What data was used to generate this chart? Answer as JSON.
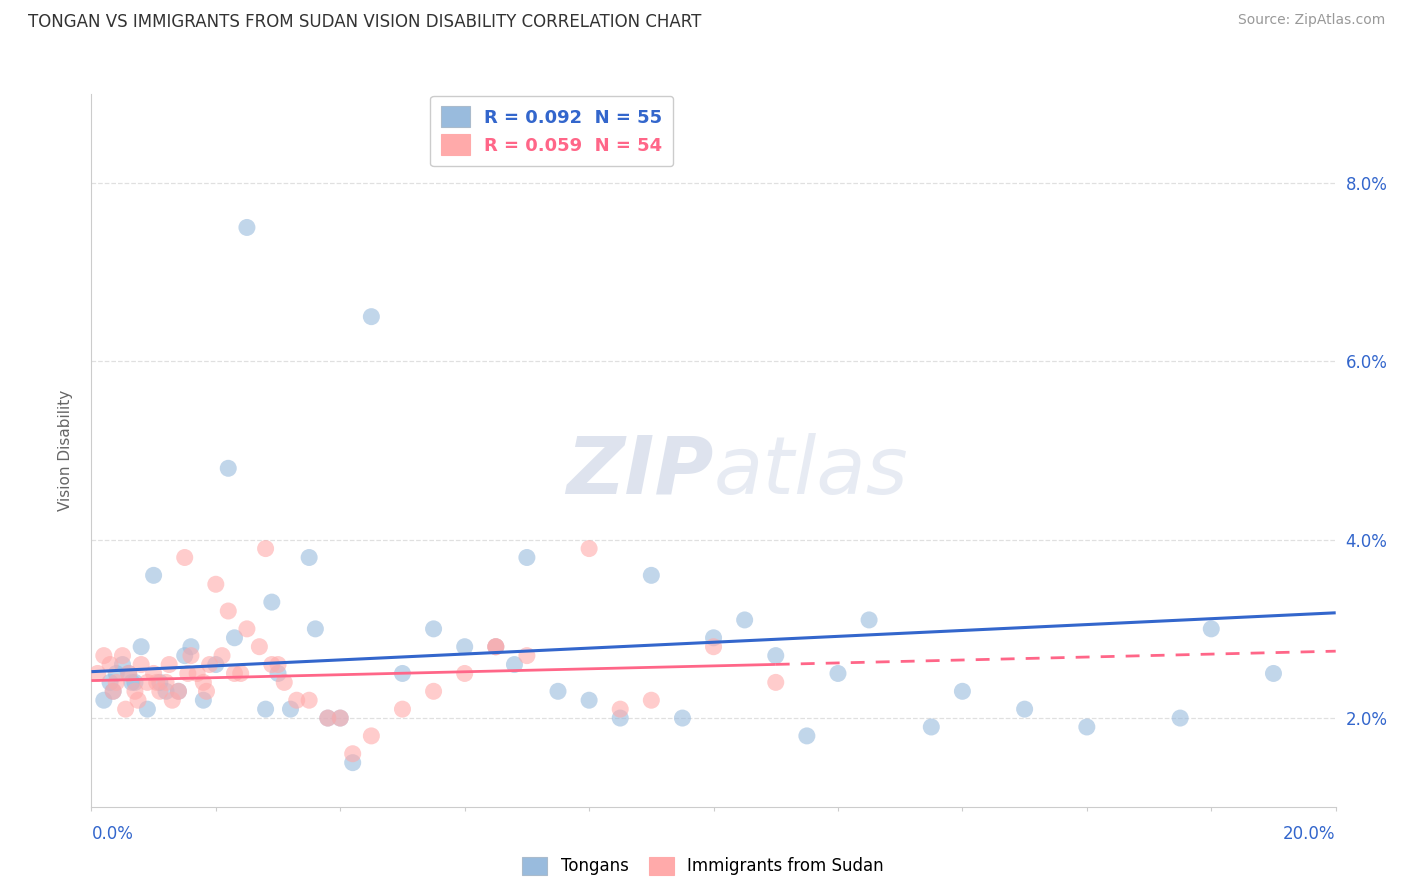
{
  "title": "TONGAN VS IMMIGRANTS FROM SUDAN VISION DISABILITY CORRELATION CHART",
  "source": "Source: ZipAtlas.com",
  "ylabel": "Vision Disability",
  "xmin": 0.0,
  "xmax": 20.0,
  "ymin": 1.0,
  "ymax": 9.0,
  "yticks": [
    2.0,
    4.0,
    6.0,
    8.0
  ],
  "xticks": [
    0.0,
    2.0,
    4.0,
    6.0,
    8.0,
    10.0,
    12.0,
    14.0,
    16.0,
    18.0,
    20.0
  ],
  "legend_blue_label": "Tongans",
  "legend_pink_label": "Immigrants from Sudan",
  "legend_blue_text": "R = 0.092  N = 55",
  "legend_pink_text": "R = 0.059  N = 54",
  "blue_fill": "#99BBDD",
  "pink_fill": "#FFAAAA",
  "line_blue": "#3366CC",
  "line_pink": "#FF6688",
  "blue_scatter_x": [
    2.5,
    4.5,
    2.2,
    3.5,
    1.0,
    0.8,
    1.5,
    2.0,
    0.5,
    0.6,
    0.3,
    0.7,
    1.2,
    1.8,
    2.8,
    3.2,
    4.0,
    1.4,
    0.4,
    0.9,
    1.6,
    2.3,
    2.9,
    3.6,
    5.0,
    6.5,
    7.5,
    8.5,
    10.0,
    11.0,
    12.5,
    14.0,
    15.0,
    16.0,
    17.5,
    18.0,
    5.5,
    6.0,
    7.0,
    8.0,
    9.5,
    10.5,
    12.0,
    13.5,
    19.0,
    0.2,
    1.1,
    3.0,
    4.2,
    6.8,
    11.5,
    9.0,
    3.8,
    0.35,
    0.65
  ],
  "blue_scatter_y": [
    7.5,
    6.5,
    4.8,
    3.8,
    3.6,
    2.8,
    2.7,
    2.6,
    2.6,
    2.5,
    2.4,
    2.4,
    2.3,
    2.2,
    2.1,
    2.1,
    2.0,
    2.3,
    2.5,
    2.1,
    2.8,
    2.9,
    3.3,
    3.0,
    2.5,
    2.8,
    2.3,
    2.0,
    2.9,
    2.7,
    3.1,
    2.3,
    2.1,
    1.9,
    2.0,
    3.0,
    3.0,
    2.8,
    3.8,
    2.2,
    2.0,
    3.1,
    2.5,
    1.9,
    2.5,
    2.2,
    2.4,
    2.5,
    1.5,
    2.6,
    1.8,
    3.6,
    2.0,
    2.3,
    2.4
  ],
  "pink_scatter_x": [
    0.1,
    0.2,
    0.3,
    0.4,
    0.5,
    0.6,
    0.7,
    0.8,
    0.9,
    1.0,
    1.1,
    1.2,
    1.3,
    1.4,
    1.5,
    1.6,
    1.7,
    1.8,
    1.9,
    2.0,
    2.1,
    2.2,
    2.3,
    2.5,
    2.7,
    2.9,
    3.1,
    3.3,
    3.5,
    3.8,
    4.0,
    4.5,
    5.0,
    5.5,
    6.0,
    6.5,
    7.0,
    8.0,
    9.0,
    10.0,
    0.35,
    0.55,
    0.75,
    1.05,
    1.25,
    1.55,
    1.85,
    2.4,
    3.0,
    4.2,
    6.5,
    8.5,
    11.0,
    2.8
  ],
  "pink_scatter_y": [
    2.5,
    2.7,
    2.6,
    2.4,
    2.7,
    2.5,
    2.3,
    2.6,
    2.4,
    2.5,
    2.3,
    2.4,
    2.2,
    2.3,
    3.8,
    2.7,
    2.5,
    2.4,
    2.6,
    3.5,
    2.7,
    3.2,
    2.5,
    3.0,
    2.8,
    2.6,
    2.4,
    2.2,
    2.2,
    2.0,
    2.0,
    1.8,
    2.1,
    2.3,
    2.5,
    2.8,
    2.7,
    3.9,
    2.2,
    2.8,
    2.3,
    2.1,
    2.2,
    2.4,
    2.6,
    2.5,
    2.3,
    2.5,
    2.6,
    1.6,
    2.8,
    2.1,
    2.4,
    3.9
  ],
  "blue_line_y_start": 2.52,
  "blue_line_y_end": 3.18,
  "pink_line_y_start": 2.42,
  "pink_line_y_end": 2.75,
  "pink_line_solid_end_x": 11.0,
  "background_color": "#ffffff",
  "grid_color": "#e0e0e0",
  "title_color": "#333333",
  "source_color": "#999999",
  "axis_label_color": "#3366CC",
  "ylabel_color": "#666666"
}
